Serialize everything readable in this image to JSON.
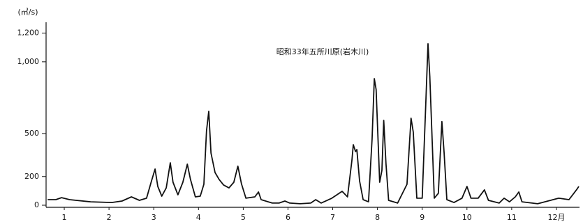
{
  "chart_data": {
    "type": "line",
    "y_axis_label": "(㎥/s)",
    "annotation": "昭和33年五所川原(岩木川)",
    "color": "#111111",
    "xlim": [
      0.6,
      12.5
    ],
    "xticks": [
      1,
      2,
      3,
      4,
      5,
      6,
      7,
      8,
      9,
      10,
      11,
      {
        "value": 12,
        "label": "12月"
      }
    ],
    "ylim": [
      0,
      1300
    ],
    "yticks": [
      0,
      200,
      500,
      {
        "value": 1000,
        "label": "1,000"
      },
      {
        "value": 1200,
        "label": "1,200"
      }
    ],
    "x": [
      0.63,
      0.81,
      0.94,
      1.12,
      1.59,
      2.06,
      2.29,
      2.5,
      2.68,
      2.84,
      2.95,
      3.03,
      3.09,
      3.18,
      3.28,
      3.37,
      3.43,
      3.54,
      3.65,
      3.75,
      3.82,
      3.93,
      4.04,
      4.12,
      4.18,
      4.23,
      4.28,
      4.37,
      4.46,
      4.56,
      4.68,
      4.79,
      4.88,
      4.96,
      5.06,
      5.26,
      5.34,
      5.4,
      5.65,
      5.8,
      5.93,
      6.04,
      6.27,
      6.51,
      6.62,
      6.74,
      6.98,
      7.21,
      7.33,
      7.43,
      7.46,
      7.51,
      7.54,
      7.6,
      7.68,
      7.8,
      7.88,
      7.93,
      7.97,
      8.05,
      8.1,
      8.14,
      8.19,
      8.25,
      8.45,
      8.66,
      8.75,
      8.8,
      8.88,
      9.0,
      9.08,
      9.13,
      9.17,
      9.27,
      9.36,
      9.44,
      9.49,
      9.55,
      9.71,
      9.89,
      10.0,
      10.09,
      10.25,
      10.39,
      10.48,
      10.72,
      10.83,
      10.95,
      11.08,
      11.16,
      11.23,
      11.58,
      12.05,
      12.28,
      12.46,
      12.5
    ],
    "values": [
      39,
      39,
      53,
      39,
      24,
      19,
      29,
      58,
      34,
      49,
      170,
      252,
      131,
      63,
      121,
      296,
      160,
      73,
      160,
      286,
      180,
      58,
      63,
      146,
      519,
      655,
      364,
      228,
      180,
      141,
      121,
      160,
      272,
      150,
      49,
      58,
      92,
      39,
      15,
      15,
      29,
      15,
      10,
      15,
      39,
      15,
      49,
      97,
      58,
      316,
      422,
      374,
      388,
      170,
      39,
      24,
      461,
      883,
      806,
      160,
      243,
      592,
      291,
      34,
      15,
      146,
      607,
      510,
      49,
      49,
      704,
      1126,
      898,
      49,
      83,
      583,
      364,
      39,
      19,
      49,
      131,
      49,
      49,
      107,
      34,
      15,
      49,
      24,
      58,
      92,
      24,
      10,
      49,
      39,
      112,
      131
    ]
  }
}
